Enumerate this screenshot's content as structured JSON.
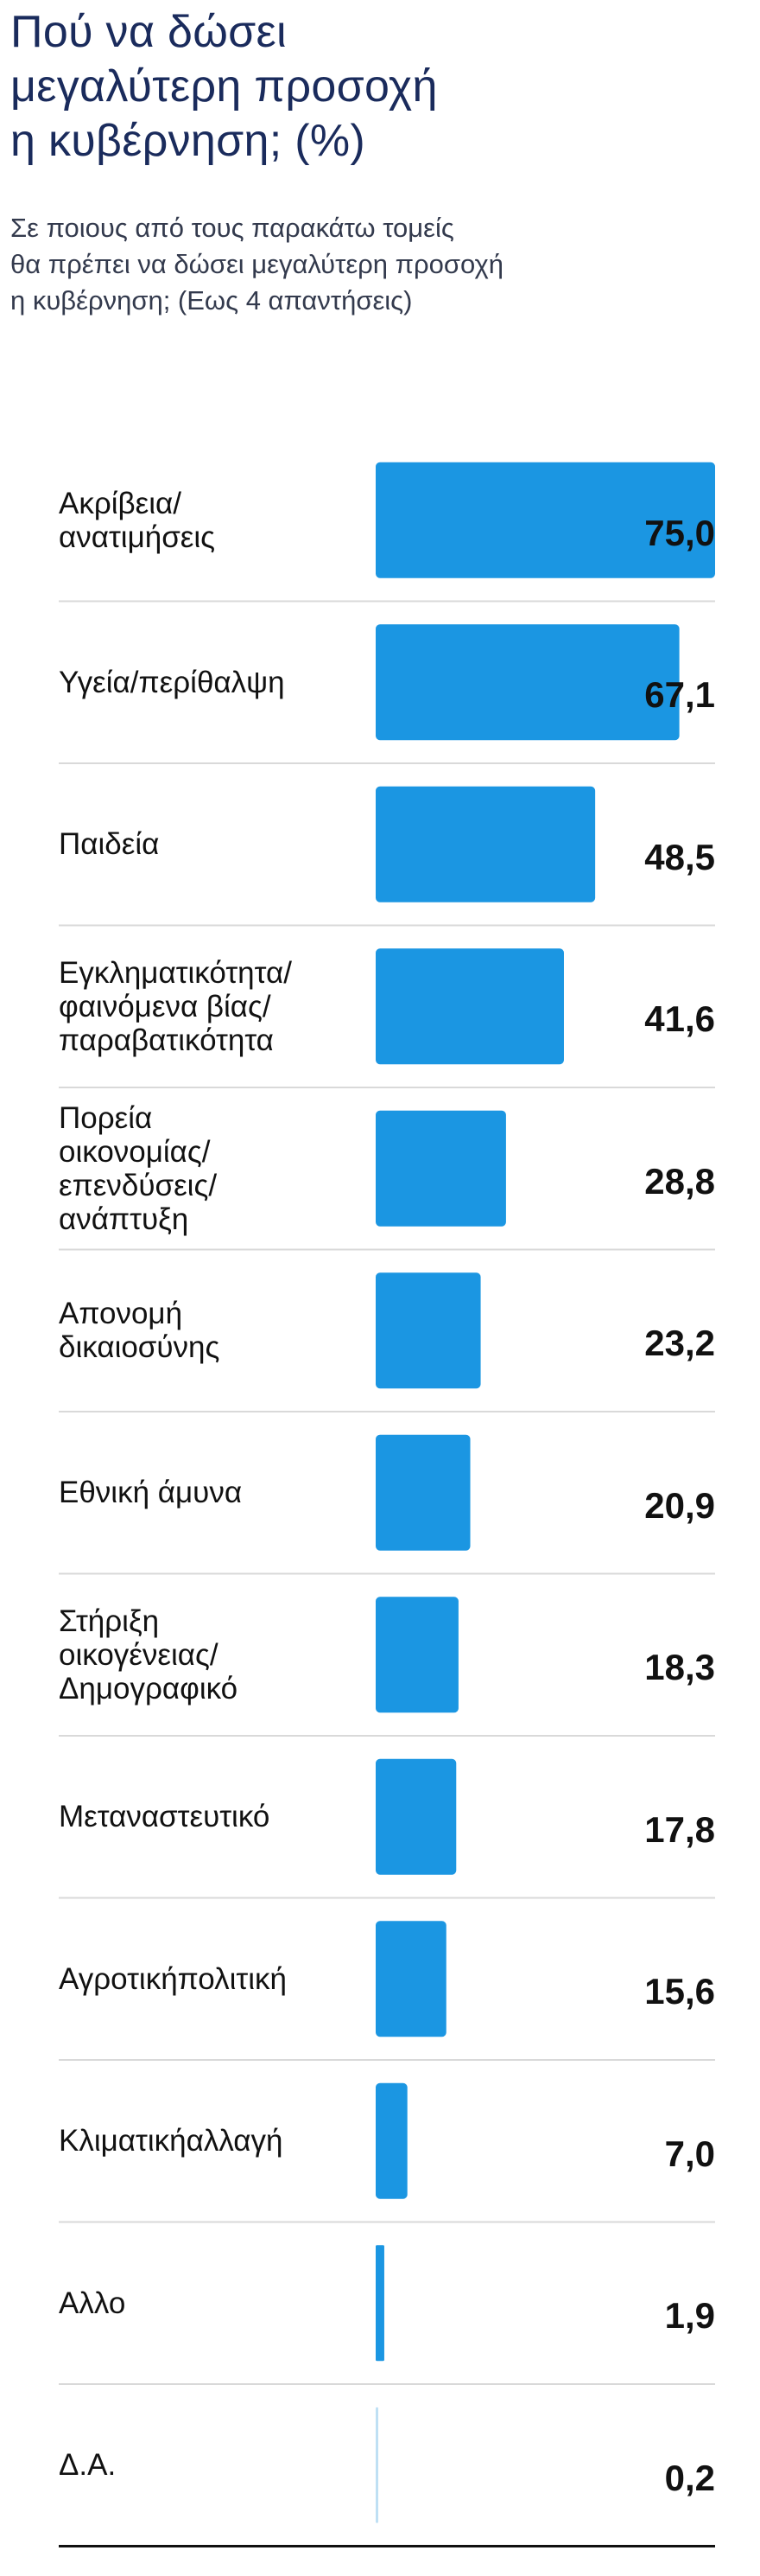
{
  "title_lines": [
    "Πού να δώσει",
    "μεγαλύτερη προσοχή",
    "η κυβέρνηση; (%)"
  ],
  "subtitle_lines": [
    "Σε ποιους από τους παρακάτω τομείς",
    "θα πρέπει να δώσει μεγαλύτερη προσοχή",
    "η κυβέρνηση; (Εως 4 απαντήσεις)"
  ],
  "colors": {
    "bar": "#1b96e2",
    "bar_light": "#bfe0f4",
    "separator": "#d9d9d9",
    "title": "#1a2b5c"
  },
  "chart_data": {
    "type": "bar",
    "orientation": "horizontal",
    "title": "Πού να δώσει μεγαλύτερη προσοχή η κυβέρνηση; (%)",
    "subtitle": "Σε ποιους από τους παρακάτω τομείς θα πρέπει να δώσει μεγαλύτερη προσοχή η κυβέρνηση; (Εως 4 απαντήσεις)",
    "xlim": [
      0,
      75
    ],
    "grid": false,
    "categories": [
      [
        "Ακρίβεια/",
        "ανατιμήσεις"
      ],
      [
        "Υγεία/περίθαλψη"
      ],
      [
        "Παιδεία"
      ],
      [
        "Εγκληματικότητα/",
        "φαινόμενα βίας/",
        "παραβατικότητα"
      ],
      [
        "Πορεία",
        "οικονομίας/",
        "επενδύσεις/",
        "ανάπτυξη"
      ],
      [
        "Απονομή",
        "δικαιοσύνης"
      ],
      [
        "Εθνική άμυνα"
      ],
      [
        "Στήριξη",
        "οικογένειας/",
        "Δημογραφικό"
      ],
      [
        "Μεταναστευτικό"
      ],
      [
        "Αγροτικήπολιτική"
      ],
      [
        "Κλιματικήαλλαγή"
      ],
      [
        "Αλλο"
      ],
      [
        "Δ.Α."
      ]
    ],
    "values": [
      75.0,
      67.1,
      48.5,
      41.6,
      28.8,
      23.2,
      20.9,
      18.3,
      17.8,
      15.6,
      7.0,
      1.9,
      0.2
    ],
    "value_labels": [
      "75,0",
      "67,1",
      "48,5",
      "41,6",
      "28,8",
      "23,2",
      "20,9",
      "18,3",
      "17,8",
      "15,6",
      "7,0",
      "1,9",
      "0,2"
    ]
  }
}
